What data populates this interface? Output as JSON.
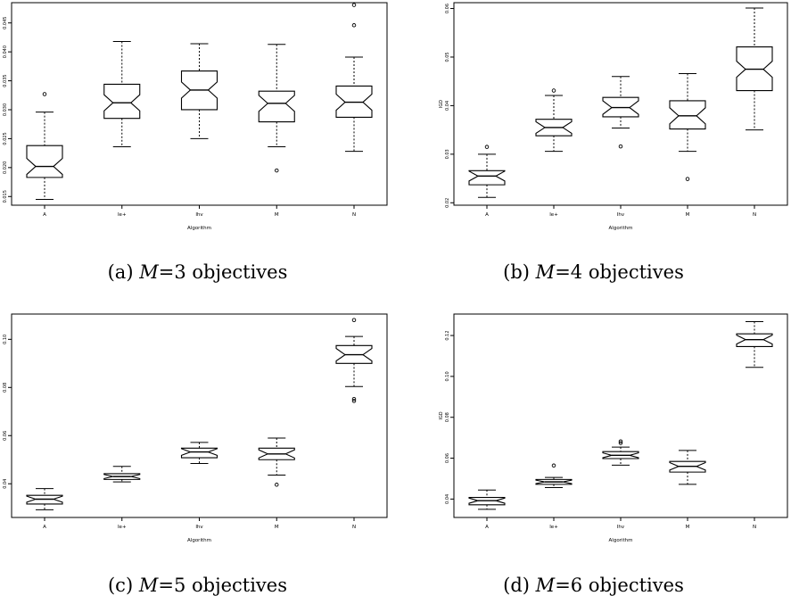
{
  "figure": {
    "captions": [
      {
        "label": "(a)",
        "var": "M",
        "eq": "=3",
        "rest": " objectives"
      },
      {
        "label": "(b)",
        "var": "M",
        "eq": "=4",
        "rest": " objectives"
      },
      {
        "label": "(c)",
        "var": "M",
        "eq": "=5",
        "rest": " objectives"
      },
      {
        "label": "(d)",
        "var": "M",
        "eq": "=6",
        "rest": " objectives"
      }
    ]
  },
  "chart_data": [
    {
      "type": "box",
      "xlabel": "Algorithm",
      "ylabel": "IGD",
      "categories": [
        "A",
        "Ie+",
        "Ihv",
        "M",
        "N"
      ],
      "ylim": [
        0.0135,
        0.0485
      ],
      "yticks": [
        0.015,
        0.02,
        0.025,
        0.03,
        0.035,
        0.04,
        0.045
      ],
      "ytick_labels": [
        "0.015",
        "0.020",
        "0.025",
        "0.030",
        "0.035",
        "0.040",
        "0.045"
      ],
      "boxes": [
        {
          "low": 0.0145,
          "q1": 0.0183,
          "med": 0.0202,
          "q3": 0.0238,
          "high": 0.0296,
          "outliers": [
            0.0327
          ]
        },
        {
          "low": 0.0236,
          "q1": 0.0285,
          "med": 0.0312,
          "q3": 0.0344,
          "high": 0.0418,
          "outliers": []
        },
        {
          "low": 0.025,
          "q1": 0.03,
          "med": 0.0334,
          "q3": 0.0367,
          "high": 0.0414,
          "outliers": []
        },
        {
          "low": 0.0236,
          "q1": 0.0279,
          "med": 0.0311,
          "q3": 0.0332,
          "high": 0.0413,
          "outliers": [
            0.0195
          ]
        },
        {
          "low": 0.0228,
          "q1": 0.0287,
          "med": 0.0313,
          "q3": 0.0341,
          "high": 0.0391,
          "outliers": [
            0.0446,
            0.0481
          ]
        }
      ]
    },
    {
      "type": "box",
      "xlabel": "Algorithm",
      "ylabel": "IGD",
      "categories": [
        "A",
        "Ie+",
        "Ihv",
        "M",
        "N"
      ],
      "ylim": [
        0.0195,
        0.0612
      ],
      "yticks": [
        0.02,
        0.03,
        0.04,
        0.05,
        0.06
      ],
      "ytick_labels": [
        "0.02",
        "0.03",
        "0.04",
        "0.05",
        "0.06"
      ],
      "boxes": [
        {
          "low": 0.0211,
          "q1": 0.0237,
          "med": 0.0255,
          "q3": 0.0266,
          "high": 0.03,
          "outliers": [
            0.0315
          ]
        },
        {
          "low": 0.0306,
          "q1": 0.0338,
          "med": 0.0355,
          "q3": 0.0372,
          "high": 0.0421,
          "outliers": [
            0.0431
          ]
        },
        {
          "low": 0.0354,
          "q1": 0.0377,
          "med": 0.0396,
          "q3": 0.0417,
          "high": 0.046,
          "outliers": [
            0.0316
          ]
        },
        {
          "low": 0.0306,
          "q1": 0.0352,
          "med": 0.0379,
          "q3": 0.041,
          "high": 0.0466,
          "outliers": [
            0.0249
          ]
        },
        {
          "low": 0.035,
          "q1": 0.0431,
          "med": 0.0475,
          "q3": 0.0521,
          "high": 0.0601,
          "outliers": []
        }
      ]
    },
    {
      "type": "box",
      "xlabel": "Algorithm",
      "ylabel": "IGD",
      "categories": [
        "A",
        "Ie+",
        "Ihv",
        "M",
        "N"
      ],
      "ylim": [
        0.026,
        0.1105
      ],
      "yticks": [
        0.04,
        0.06,
        0.08,
        0.1
      ],
      "ytick_labels": [
        "0.04",
        "0.06",
        "0.08",
        "0.10"
      ],
      "boxes": [
        {
          "low": 0.0292,
          "q1": 0.0316,
          "med": 0.0336,
          "q3": 0.0352,
          "high": 0.038,
          "outliers": []
        },
        {
          "low": 0.0408,
          "q1": 0.0418,
          "med": 0.043,
          "q3": 0.0442,
          "high": 0.0472,
          "outliers": []
        },
        {
          "low": 0.0484,
          "q1": 0.0508,
          "med": 0.0532,
          "q3": 0.0548,
          "high": 0.0572,
          "outliers": []
        },
        {
          "low": 0.0436,
          "q1": 0.05,
          "med": 0.0524,
          "q3": 0.0548,
          "high": 0.059,
          "outliers": [
            0.0396
          ]
        },
        {
          "low": 0.0804,
          "q1": 0.09,
          "med": 0.0936,
          "q3": 0.0974,
          "high": 0.1012,
          "outliers": [
            0.0744,
            0.0752,
            0.108
          ]
        }
      ]
    },
    {
      "type": "box",
      "xlabel": "Algorithm",
      "ylabel": "IGD",
      "categories": [
        "A",
        "Ie+",
        "Ihv",
        "M",
        "N"
      ],
      "ylim": [
        0.031,
        0.1305
      ],
      "yticks": [
        0.04,
        0.06,
        0.08,
        0.1,
        0.12
      ],
      "ytick_labels": [
        "0.04",
        "0.06",
        "0.08",
        "0.10",
        "0.12"
      ],
      "boxes": [
        {
          "low": 0.035,
          "q1": 0.0372,
          "med": 0.0392,
          "q3": 0.0408,
          "high": 0.0444,
          "outliers": []
        },
        {
          "low": 0.0456,
          "q1": 0.0472,
          "med": 0.0484,
          "q3": 0.0496,
          "high": 0.0506,
          "outliers": [
            0.0564
          ]
        },
        {
          "low": 0.0566,
          "q1": 0.0598,
          "med": 0.0614,
          "q3": 0.0632,
          "high": 0.0654,
          "outliers": [
            0.0674,
            0.0682
          ]
        },
        {
          "low": 0.0472,
          "q1": 0.0532,
          "med": 0.056,
          "q3": 0.0584,
          "high": 0.0638,
          "outliers": []
        },
        {
          "low": 0.1044,
          "q1": 0.1146,
          "med": 0.118,
          "q3": 0.1208,
          "high": 0.1268,
          "outliers": []
        }
      ]
    }
  ]
}
